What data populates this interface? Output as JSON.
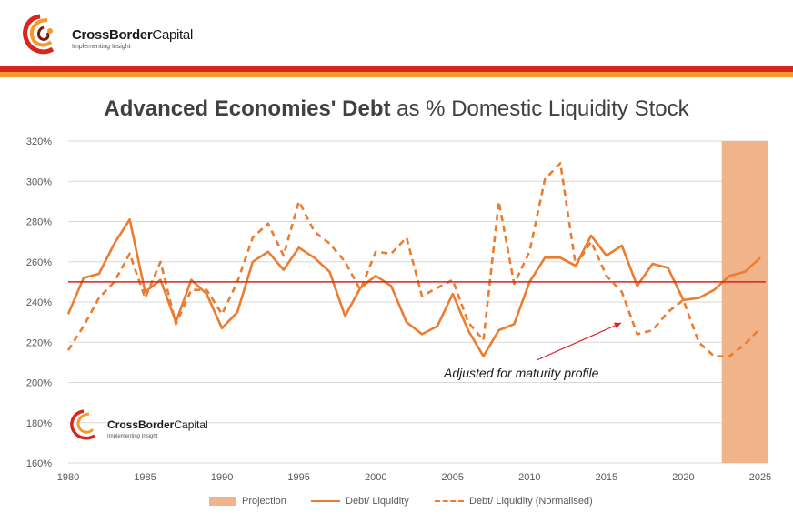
{
  "brand": {
    "name_bold": "CrossBorder",
    "name_light": "Capital",
    "tagline": "Implementing Insight"
  },
  "colors": {
    "red": "#d9251d",
    "orange": "#ec7c30",
    "projection": "#f1b48a",
    "grid": "#d9d9d9"
  },
  "title": {
    "bold": "Advanced Economies' Debt",
    "rest": " as % Domestic Liquidity Stock"
  },
  "annotation": "Adjusted for maturity profile",
  "legend": {
    "projection": "Projection",
    "debt": "Debt/ Liquidity",
    "normalised": "Debt/ Liquidity (Normalised)"
  },
  "chart_data": {
    "type": "line",
    "title": "Advanced Economies' Debt as % Domestic Liquidity Stock",
    "xlabel": "",
    "ylabel": "",
    "xlim": [
      1980,
      2025
    ],
    "ylim": [
      160,
      320
    ],
    "yticks": [
      160,
      180,
      200,
      220,
      240,
      260,
      280,
      300,
      320
    ],
    "ytick_labels": [
      "160%",
      "180%",
      "200%",
      "220%",
      "240%",
      "260%",
      "280%",
      "300%",
      "320%"
    ],
    "xticks": [
      1980,
      1985,
      1990,
      1995,
      2000,
      2005,
      2010,
      2015,
      2020,
      2025
    ],
    "xtick_labels": [
      "1980",
      "1985",
      "1990",
      "1995",
      "2000",
      "2005",
      "2010",
      "2015",
      "2020",
      "2025"
    ],
    "reference_line": 250,
    "projection_range": [
      2022.5,
      2025.5
    ],
    "series": [
      {
        "name": "Debt/ Liquidity",
        "style": "solid",
        "x": [
          1980,
          1981,
          1982,
          1983,
          1984,
          1985,
          1986,
          1987,
          1988,
          1989,
          1990,
          1991,
          1992,
          1993,
          1994,
          1995,
          1996,
          1997,
          1998,
          1999,
          2000,
          2001,
          2002,
          2003,
          2004,
          2005,
          2006,
          2007,
          2008,
          2009,
          2010,
          2011,
          2012,
          2013,
          2014,
          2015,
          2016,
          2017,
          2018,
          2019,
          2020,
          2021,
          2022,
          2023,
          2024,
          2025
        ],
        "values": [
          234,
          252,
          254,
          269,
          281,
          245,
          251,
          230,
          251,
          244,
          227,
          235,
          260,
          265,
          256,
          267,
          262,
          255,
          233,
          247,
          253,
          248,
          230,
          224,
          228,
          244,
          226,
          213,
          226,
          229,
          250,
          262,
          262,
          258,
          273,
          263,
          268,
          248,
          259,
          257,
          241,
          242,
          246,
          253,
          255,
          262
        ]
      },
      {
        "name": "Debt/ Liquidity (Normalised)",
        "style": "dashed",
        "x": [
          1980,
          1981,
          1982,
          1983,
          1984,
          1985,
          1986,
          1987,
          1988,
          1989,
          1990,
          1991,
          1992,
          1993,
          1994,
          1995,
          1996,
          1997,
          1998,
          1999,
          2000,
          2001,
          2002,
          2003,
          2004,
          2005,
          2006,
          2007,
          2008,
          2009,
          2010,
          2011,
          2012,
          2013,
          2014,
          2015,
          2016,
          2017,
          2018,
          2019,
          2020,
          2021,
          2022,
          2023,
          2024,
          2025
        ],
        "values": [
          216,
          228,
          242,
          250,
          264,
          242,
          260,
          229,
          246,
          246,
          234,
          250,
          272,
          279,
          263,
          290,
          275,
          269,
          260,
          246,
          265,
          264,
          272,
          243,
          247,
          251,
          230,
          221,
          290,
          249,
          265,
          301,
          309,
          258,
          270,
          253,
          245,
          224,
          226,
          235,
          241,
          220,
          213,
          213,
          219,
          227
        ]
      }
    ]
  }
}
